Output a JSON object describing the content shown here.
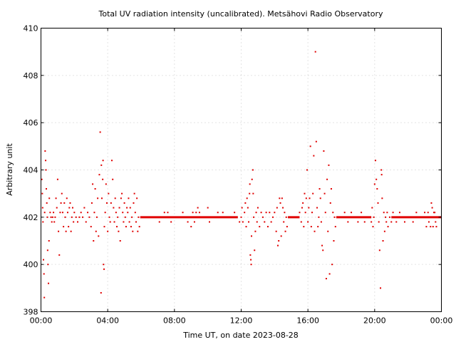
{
  "chart_data": {
    "type": "scatter",
    "title": "Total UV radiation intensity (uncalibrated). Metsähovi Radio Observatory",
    "xlabel": "Time UT, on date 2023-08-28",
    "ylabel": "Arbitrary unit",
    "xlim": [
      0,
      24
    ],
    "ylim": [
      398,
      410
    ],
    "grid": true,
    "x_ticks": [
      0,
      4,
      8,
      12,
      16,
      20,
      24
    ],
    "x_tick_labels": [
      "00:00",
      "04:00",
      "08:00",
      "12:00",
      "16:00",
      "20:00",
      "00:00"
    ],
    "y_ticks": [
      398,
      400,
      402,
      404,
      406,
      408,
      410
    ],
    "y_tick_labels": [
      "398",
      "400",
      "402",
      "404",
      "406",
      "408",
      "410"
    ],
    "marker_color": "#e00000",
    "baseline_value": 402.0,
    "baseline_segments": [
      [
        5.95,
        11.8
      ],
      [
        14.8,
        15.5
      ],
      [
        17.7,
        19.8
      ],
      [
        21.0,
        24.0
      ]
    ],
    "points": [
      [
        0.05,
        403.6
      ],
      [
        0.08,
        403.0
      ],
      [
        0.1,
        402.4
      ],
      [
        0.12,
        401.8
      ],
      [
        0.15,
        400.2
      ],
      [
        0.18,
        399.6
      ],
      [
        0.2,
        398.6
      ],
      [
        0.22,
        402.2
      ],
      [
        0.25,
        404.8
      ],
      [
        0.28,
        404.4
      ],
      [
        0.3,
        404.0
      ],
      [
        0.32,
        403.2
      ],
      [
        0.35,
        402.6
      ],
      [
        0.38,
        402.0
      ],
      [
        0.4,
        400.6
      ],
      [
        0.42,
        400.0
      ],
      [
        0.45,
        399.2
      ],
      [
        0.48,
        401.0
      ],
      [
        0.5,
        402.8
      ],
      [
        0.55,
        402.2
      ],
      [
        0.6,
        402.0
      ],
      [
        0.65,
        401.8
      ],
      [
        0.7,
        402.0
      ],
      [
        0.75,
        402.2
      ],
      [
        0.8,
        401.8
      ],
      [
        0.85,
        402.0
      ],
      [
        0.9,
        402.8
      ],
      [
        0.95,
        402.4
      ],
      [
        1.0,
        403.6
      ],
      [
        1.05,
        401.4
      ],
      [
        1.1,
        400.4
      ],
      [
        1.15,
        402.2
      ],
      [
        1.2,
        402.6
      ],
      [
        1.25,
        403.0
      ],
      [
        1.3,
        402.2
      ],
      [
        1.35,
        401.6
      ],
      [
        1.4,
        402.6
      ],
      [
        1.45,
        402.0
      ],
      [
        1.5,
        401.4
      ],
      [
        1.55,
        402.8
      ],
      [
        1.6,
        402.2
      ],
      [
        1.65,
        401.6
      ],
      [
        1.7,
        402.4
      ],
      [
        1.75,
        402.6
      ],
      [
        1.8,
        401.4
      ],
      [
        1.85,
        402.0
      ],
      [
        1.9,
        402.4
      ],
      [
        1.95,
        401.8
      ],
      [
        2.0,
        402.2
      ],
      [
        2.1,
        402.0
      ],
      [
        2.2,
        401.8
      ],
      [
        2.3,
        402.0
      ],
      [
        2.4,
        402.2
      ],
      [
        2.5,
        402.0
      ],
      [
        2.6,
        402.4
      ],
      [
        2.7,
        401.8
      ],
      [
        2.8,
        402.2
      ],
      [
        2.9,
        402.0
      ],
      [
        3.0,
        401.6
      ],
      [
        3.05,
        402.6
      ],
      [
        3.1,
        403.4
      ],
      [
        3.15,
        401.0
      ],
      [
        3.2,
        402.2
      ],
      [
        3.25,
        403.2
      ],
      [
        3.3,
        401.4
      ],
      [
        3.35,
        402.0
      ],
      [
        3.4,
        402.8
      ],
      [
        3.45,
        401.2
      ],
      [
        3.5,
        403.8
      ],
      [
        3.55,
        405.6
      ],
      [
        3.6,
        398.8
      ],
      [
        3.62,
        404.2
      ],
      [
        3.65,
        402.8
      ],
      [
        3.7,
        403.6
      ],
      [
        3.72,
        404.4
      ],
      [
        3.75,
        400.0
      ],
      [
        3.78,
        399.8
      ],
      [
        3.8,
        401.6
      ],
      [
        3.85,
        402.2
      ],
      [
        3.9,
        403.4
      ],
      [
        3.95,
        402.6
      ],
      [
        4.0,
        401.4
      ],
      [
        4.05,
        403.0
      ],
      [
        4.1,
        402.0
      ],
      [
        4.15,
        401.8
      ],
      [
        4.2,
        402.6
      ],
      [
        4.25,
        404.4
      ],
      [
        4.3,
        403.6
      ],
      [
        4.35,
        402.4
      ],
      [
        4.4,
        401.8
      ],
      [
        4.45,
        402.8
      ],
      [
        4.5,
        402.2
      ],
      [
        4.55,
        401.6
      ],
      [
        4.6,
        402.0
      ],
      [
        4.65,
        401.4
      ],
      [
        4.7,
        402.4
      ],
      [
        4.75,
        401.0
      ],
      [
        4.8,
        402.8
      ],
      [
        4.85,
        403.0
      ],
      [
        4.9,
        402.2
      ],
      [
        4.95,
        401.8
      ],
      [
        5.0,
        402.6
      ],
      [
        5.05,
        402.0
      ],
      [
        5.1,
        401.6
      ],
      [
        5.15,
        402.4
      ],
      [
        5.2,
        402.2
      ],
      [
        5.25,
        402.8
      ],
      [
        5.3,
        401.8
      ],
      [
        5.35,
        402.4
      ],
      [
        5.4,
        401.6
      ],
      [
        5.45,
        402.0
      ],
      [
        5.5,
        401.4
      ],
      [
        5.55,
        402.6
      ],
      [
        5.6,
        403.0
      ],
      [
        5.65,
        402.2
      ],
      [
        5.7,
        401.8
      ],
      [
        5.75,
        402.8
      ],
      [
        5.8,
        401.4
      ],
      [
        5.85,
        402.0
      ],
      [
        5.9,
        401.6
      ],
      [
        7.1,
        401.8
      ],
      [
        7.4,
        402.2
      ],
      [
        7.6,
        402.2
      ],
      [
        7.8,
        401.8
      ],
      [
        8.5,
        402.2
      ],
      [
        8.8,
        401.8
      ],
      [
        9.0,
        401.6
      ],
      [
        9.1,
        402.2
      ],
      [
        9.2,
        401.8
      ],
      [
        9.3,
        402.2
      ],
      [
        9.4,
        402.4
      ],
      [
        9.5,
        402.2
      ],
      [
        10.0,
        402.4
      ],
      [
        10.1,
        401.8
      ],
      [
        10.6,
        402.2
      ],
      [
        10.9,
        402.2
      ],
      [
        11.6,
        402.2
      ],
      [
        11.9,
        401.8
      ],
      [
        12.0,
        402.0
      ],
      [
        12.05,
        402.4
      ],
      [
        12.1,
        401.8
      ],
      [
        12.2,
        402.2
      ],
      [
        12.25,
        402.6
      ],
      [
        12.3,
        401.6
      ],
      [
        12.35,
        402.8
      ],
      [
        12.4,
        402.4
      ],
      [
        12.45,
        401.8
      ],
      [
        12.5,
        403.0
      ],
      [
        12.52,
        403.4
      ],
      [
        12.55,
        400.4
      ],
      [
        12.58,
        400.2
      ],
      [
        12.6,
        400.0
      ],
      [
        12.62,
        401.2
      ],
      [
        12.65,
        403.6
      ],
      [
        12.7,
        404.0
      ],
      [
        12.72,
        403.0
      ],
      [
        12.75,
        402.0
      ],
      [
        12.8,
        400.6
      ],
      [
        12.85,
        401.4
      ],
      [
        12.9,
        402.2
      ],
      [
        12.95,
        401.8
      ],
      [
        13.0,
        402.4
      ],
      [
        13.1,
        401.6
      ],
      [
        13.2,
        402.2
      ],
      [
        13.3,
        402.0
      ],
      [
        13.4,
        401.8
      ],
      [
        13.5,
        402.2
      ],
      [
        13.6,
        401.6
      ],
      [
        13.7,
        402.2
      ],
      [
        13.8,
        401.8
      ],
      [
        13.9,
        402.0
      ],
      [
        14.0,
        402.2
      ],
      [
        14.1,
        401.4
      ],
      [
        14.15,
        402.4
      ],
      [
        14.2,
        400.8
      ],
      [
        14.25,
        401.0
      ],
      [
        14.3,
        402.8
      ],
      [
        14.35,
        402.6
      ],
      [
        14.4,
        401.2
      ],
      [
        14.45,
        402.8
      ],
      [
        14.5,
        402.4
      ],
      [
        14.55,
        401.8
      ],
      [
        14.6,
        402.2
      ],
      [
        14.65,
        401.4
      ],
      [
        14.7,
        402.0
      ],
      [
        14.75,
        401.6
      ],
      [
        15.5,
        402.2
      ],
      [
        15.6,
        401.8
      ],
      [
        15.65,
        402.4
      ],
      [
        15.7,
        402.6
      ],
      [
        15.75,
        401.6
      ],
      [
        15.8,
        403.0
      ],
      [
        15.85,
        402.2
      ],
      [
        15.9,
        402.8
      ],
      [
        15.95,
        404.0
      ],
      [
        16.0,
        401.8
      ],
      [
        16.05,
        402.4
      ],
      [
        16.1,
        402.8
      ],
      [
        16.15,
        405.0
      ],
      [
        16.2,
        401.6
      ],
      [
        16.25,
        402.2
      ],
      [
        16.3,
        403.0
      ],
      [
        16.35,
        404.6
      ],
      [
        16.4,
        401.4
      ],
      [
        16.45,
        409.0
      ],
      [
        16.5,
        405.2
      ],
      [
        16.55,
        402.4
      ],
      [
        16.6,
        401.6
      ],
      [
        16.65,
        402.0
      ],
      [
        16.7,
        403.2
      ],
      [
        16.75,
        402.8
      ],
      [
        16.8,
        401.8
      ],
      [
        16.85,
        400.8
      ],
      [
        16.9,
        400.6
      ],
      [
        16.95,
        404.8
      ],
      [
        17.0,
        403.0
      ],
      [
        17.05,
        402.2
      ],
      [
        17.1,
        399.4
      ],
      [
        17.15,
        403.6
      ],
      [
        17.2,
        401.4
      ],
      [
        17.25,
        404.2
      ],
      [
        17.3,
        399.6
      ],
      [
        17.35,
        402.6
      ],
      [
        17.4,
        403.2
      ],
      [
        17.45,
        400.0
      ],
      [
        17.5,
        402.2
      ],
      [
        17.55,
        401.0
      ],
      [
        17.6,
        402.0
      ],
      [
        17.65,
        401.6
      ],
      [
        18.2,
        402.2
      ],
      [
        18.4,
        401.8
      ],
      [
        18.6,
        402.2
      ],
      [
        19.0,
        401.8
      ],
      [
        19.2,
        402.2
      ],
      [
        19.4,
        401.8
      ],
      [
        19.8,
        401.8
      ],
      [
        19.85,
        402.4
      ],
      [
        19.9,
        401.6
      ],
      [
        19.95,
        402.0
      ],
      [
        20.0,
        403.4
      ],
      [
        20.05,
        404.4
      ],
      [
        20.1,
        403.6
      ],
      [
        20.15,
        403.2
      ],
      [
        20.2,
        402.6
      ],
      [
        20.25,
        401.8
      ],
      [
        20.3,
        400.6
      ],
      [
        20.35,
        399.0
      ],
      [
        20.4,
        404.0
      ],
      [
        20.42,
        403.8
      ],
      [
        20.45,
        402.8
      ],
      [
        20.5,
        401.0
      ],
      [
        20.55,
        402.2
      ],
      [
        20.6,
        401.4
      ],
      [
        20.65,
        402.0
      ],
      [
        20.7,
        401.8
      ],
      [
        20.75,
        402.2
      ],
      [
        20.8,
        401.6
      ],
      [
        20.9,
        402.0
      ],
      [
        21.0,
        401.8
      ],
      [
        21.1,
        402.2
      ],
      [
        21.3,
        401.8
      ],
      [
        21.5,
        402.2
      ],
      [
        21.8,
        401.8
      ],
      [
        22.3,
        401.8
      ],
      [
        22.5,
        402.2
      ],
      [
        23.0,
        402.2
      ],
      [
        23.1,
        401.6
      ],
      [
        23.2,
        402.2
      ],
      [
        23.25,
        401.8
      ],
      [
        23.3,
        402.0
      ],
      [
        23.35,
        401.6
      ],
      [
        23.4,
        402.6
      ],
      [
        23.45,
        402.4
      ],
      [
        23.5,
        401.6
      ],
      [
        23.55,
        402.2
      ],
      [
        23.6,
        402.2
      ],
      [
        23.65,
        401.8
      ],
      [
        23.7,
        401.6
      ]
    ]
  }
}
